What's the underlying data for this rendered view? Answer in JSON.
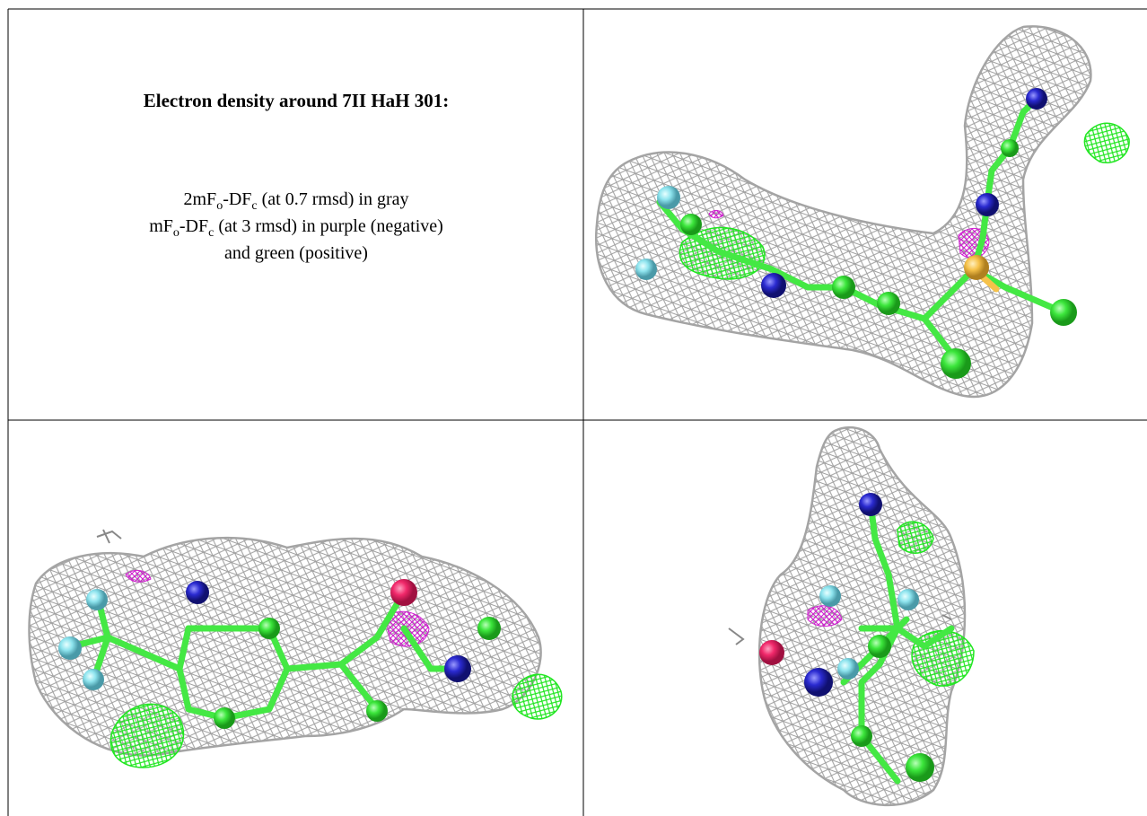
{
  "panel_text": {
    "title": "Electron density around 7II HaH 301:",
    "lines": [
      [
        "2mF",
        "o",
        "-DF",
        "c",
        " (at 0.7 rmsd) in gray"
      ],
      [
        "mF",
        "o",
        "-DF",
        "c",
        " (at 3 rmsd) in purple (negative)"
      ],
      [
        "and green (positive)"
      ]
    ]
  }
}
